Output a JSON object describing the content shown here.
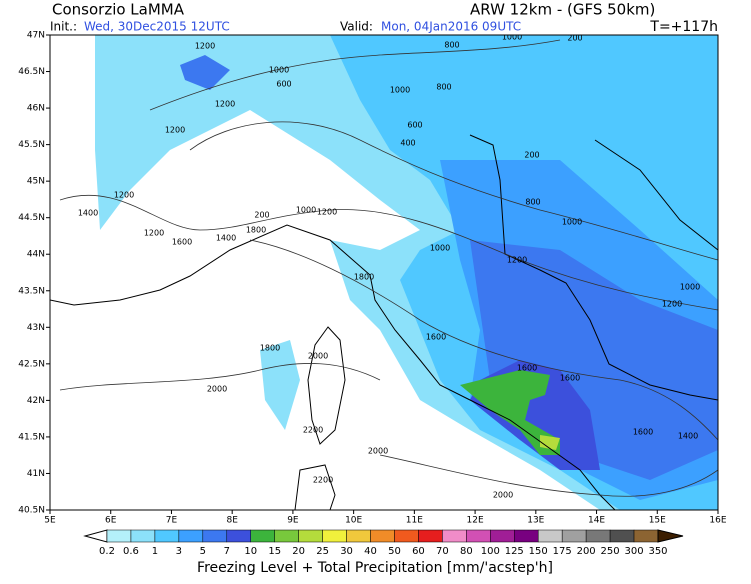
{
  "header": {
    "source": "Consorzio LaMMA",
    "model": "ARW 12km - (GFS 50km)",
    "init_label": "Init.:",
    "init": "Wed, 30Dec2015 12UTC",
    "valid_label": "Valid:",
    "valid": "Mon, 04Jan2016 09UTC",
    "lead": "T=+117h"
  },
  "map": {
    "lat_labels": [
      "47N",
      "46.5N",
      "46N",
      "45.5N",
      "45N",
      "44.5N",
      "44N",
      "43.5N",
      "43N",
      "42.5N",
      "42N",
      "41.5N",
      "41N",
      "40.5N"
    ],
    "lon_labels": [
      "5E",
      "6E",
      "7E",
      "8E",
      "9E",
      "10E",
      "11E",
      "12E",
      "13E",
      "14E",
      "15E",
      "16E"
    ],
    "contour_labels": [
      "1200",
      "800",
      "1000",
      "200",
      "1000",
      "600",
      "1000",
      "800",
      "1200",
      "600",
      "400",
      "1200",
      "200",
      "1200",
      "1400",
      "200",
      "1000",
      "1200",
      "800",
      "1000",
      "1200",
      "1600",
      "1800",
      "1400",
      "1000",
      "1200",
      "1800",
      "1000",
      "1200",
      "1600",
      "1800",
      "2000",
      "1600",
      "1600",
      "2000",
      "1600",
      "1400",
      "2200",
      "2000",
      "2000",
      "2200"
    ]
  },
  "colorbar": {
    "labels": [
      "0.2",
      "0.6",
      "1",
      "3",
      "5",
      "7",
      "10",
      "15",
      "20",
      "25",
      "30",
      "40",
      "50",
      "60",
      "70",
      "80",
      "100",
      "125",
      "150",
      "175",
      "200",
      "250",
      "300",
      "350"
    ],
    "colors": [
      "#ffffff",
      "#b4f0fa",
      "#8ce1fa",
      "#50c8ff",
      "#3ca0ff",
      "#3c78f0",
      "#3c50dc",
      "#3cb43c",
      "#78c83c",
      "#b4dc3c",
      "#f0f03c",
      "#f0c83c",
      "#f08c28",
      "#f05a1e",
      "#e61e1e",
      "#f08cc8",
      "#d250b4",
      "#a01e96",
      "#780080",
      "#c8c8c8",
      "#a0a0a0",
      "#787878",
      "#505050",
      "#8c6432",
      "#643c14",
      "#3c1e00"
    ],
    "title": "Freezing Level + Total Precipitation [mm/'acstep'h]"
  }
}
